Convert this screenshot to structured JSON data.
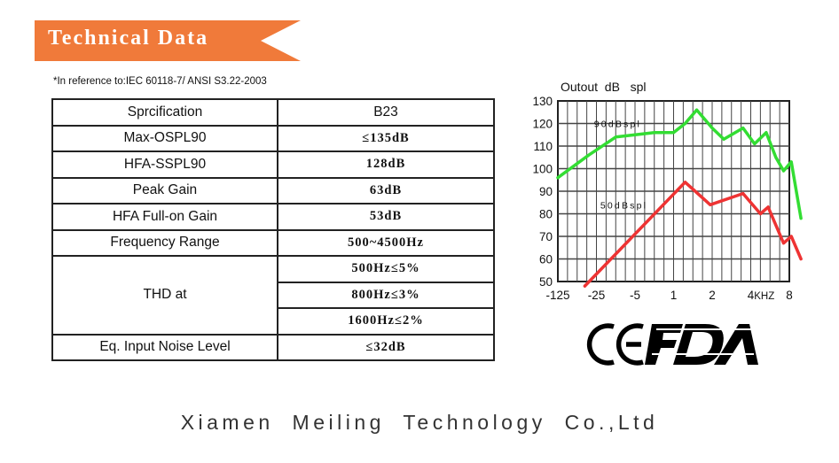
{
  "header": {
    "title": "Technical Data",
    "banner_color": "#f07a3a"
  },
  "note": "*In reference to:IEC 60118-7/ ANSI S3.22-2003",
  "spec_table": {
    "header": {
      "label": "Sprcification",
      "value": "B23"
    },
    "rows": [
      {
        "label": "Max-OSPL90",
        "value": "≤135dB"
      },
      {
        "label": "HFA-SSPL90",
        "value": "128dB"
      },
      {
        "label": "Peak Gain",
        "value": "63dB"
      },
      {
        "label": "HFA Full-on Gain",
        "value": "53dB"
      },
      {
        "label": "Frequency Range",
        "value": "500~4500Hz"
      }
    ],
    "thd": {
      "label": "THD at",
      "values": [
        "500Hz≤5%",
        "800Hz≤3%",
        "1600Hz≤2%"
      ]
    },
    "noise": {
      "label": "Eq. Input Noise Level",
      "value": "≤32dB"
    }
  },
  "chart_data": {
    "type": "line",
    "title": "Outout  dB   spl",
    "xlabel": "KHZ",
    "ylabel": "",
    "x_ticks": [
      "-125",
      "-25",
      "-5",
      "1",
      "2",
      "4",
      "8"
    ],
    "y_ticks": [
      130,
      120,
      110,
      100,
      90,
      80,
      70,
      60,
      50
    ],
    "ylim": [
      50,
      130
    ],
    "grid": true,
    "series": [
      {
        "name": "90dBspl",
        "color": "#33dd33",
        "x": [
          0,
          0.8,
          1.5,
          2.5,
          3.0,
          3.3,
          3.6,
          4.0,
          4.3,
          4.8,
          5.1,
          5.4,
          5.65,
          5.85,
          6.05,
          6.3
        ],
        "y": [
          96,
          106,
          114,
          116,
          116,
          120,
          126,
          118,
          113,
          118,
          111,
          116,
          105,
          99,
          103,
          78
        ]
      },
      {
        "name": "50dBspl",
        "color": "#ee3333",
        "x": [
          0.7,
          3.3,
          3.95,
          4.8,
          5.25,
          5.45,
          5.85,
          6.05,
          6.3
        ],
        "y": [
          48,
          94,
          84,
          89,
          80,
          83,
          67,
          70,
          60
        ]
      }
    ]
  },
  "logos": {
    "ce": "CE",
    "fda": "FDA"
  },
  "footer": {
    "company": "Xiamen Meiling  Technology Co.,Ltd"
  }
}
